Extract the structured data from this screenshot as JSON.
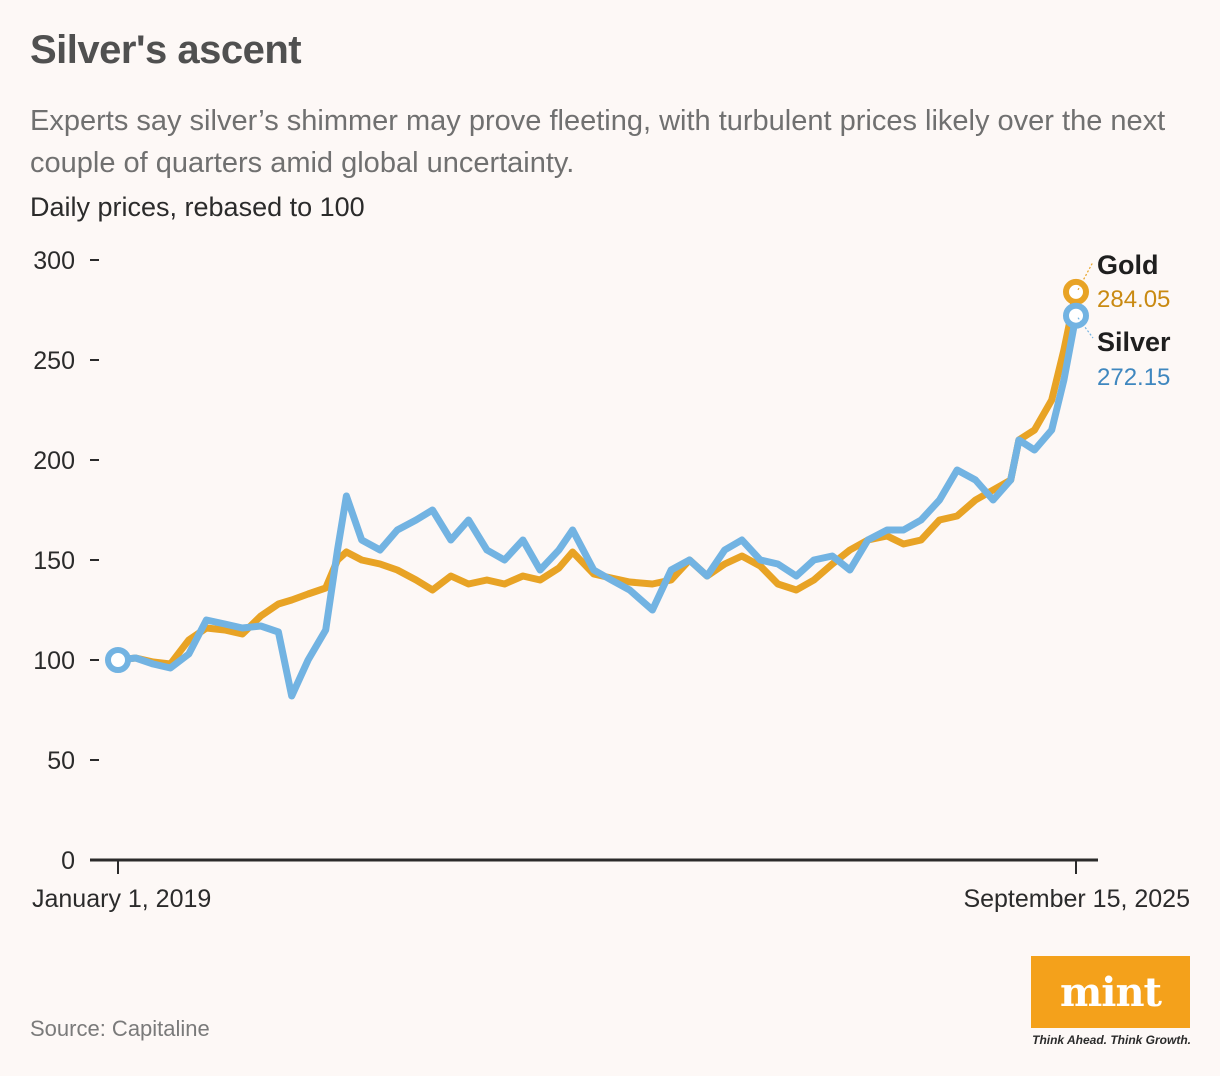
{
  "header": {
    "title": "Silver's ascent",
    "subtitle": "Experts say silver’s shimmer may prove fleeting, with turbulent prices likely over the next couple of quarters amid global uncertainty.",
    "unit_note": "Daily prices, rebased to 100"
  },
  "footer": {
    "source": "Source: Capitaline",
    "logo_text": "mint",
    "tagline": "Think Ahead. Think Growth."
  },
  "colors": {
    "gold": "#e8a325",
    "gold_text": "#c98a12",
    "silver": "#72b3e2",
    "silver_text": "#3f87bf",
    "axis": "#2b2b2b",
    "background": "#fdf8f6",
    "logo": "#f4a11b"
  },
  "chart_data": {
    "type": "line",
    "title": "Silver's ascent",
    "ylabel": "Daily prices, rebased to 100",
    "ylim": [
      0,
      300
    ],
    "yticks": [
      "0",
      "50",
      "100",
      "150",
      "200",
      "250",
      "300"
    ],
    "xlim": [
      "2019-01-01",
      "2025-09-15"
    ],
    "xtick_labels": [
      "January 1, 2019",
      "September 15, 2025"
    ],
    "grid": false,
    "legend": "end-of-line labels",
    "x": [
      "2019-01-01",
      "2019-02-15",
      "2019-04-01",
      "2019-05-15",
      "2019-07-01",
      "2019-08-15",
      "2019-10-01",
      "2019-11-15",
      "2020-01-01",
      "2020-02-15",
      "2020-03-20",
      "2020-05-01",
      "2020-06-15",
      "2020-07-15",
      "2020-08-07",
      "2020-09-15",
      "2020-11-01",
      "2020-12-15",
      "2021-02-01",
      "2021-03-15",
      "2021-05-01",
      "2021-06-15",
      "2021-08-01",
      "2021-09-15",
      "2021-11-01",
      "2021-12-15",
      "2022-02-01",
      "2022-03-08",
      "2022-05-01",
      "2022-06-15",
      "2022-08-01",
      "2022-09-28",
      "2022-11-15",
      "2023-01-01",
      "2023-02-15",
      "2023-04-01",
      "2023-05-15",
      "2023-07-01",
      "2023-08-15",
      "2023-10-01",
      "2023-11-15",
      "2024-01-01",
      "2024-02-15",
      "2024-04-01",
      "2024-05-20",
      "2024-07-01",
      "2024-08-15",
      "2024-10-01",
      "2024-11-15",
      "2025-01-01",
      "2025-02-15",
      "2025-04-01",
      "2025-04-22",
      "2025-06-01",
      "2025-07-15",
      "2025-08-15",
      "2025-09-15"
    ],
    "series": [
      {
        "name": "Gold",
        "end_value": "284.05",
        "values": [
          100,
          101,
          99,
          98,
          110,
          116,
          115,
          113,
          122,
          128,
          130,
          133,
          136,
          150,
          154,
          150,
          148,
          145,
          140,
          135,
          142,
          138,
          140,
          138,
          142,
          140,
          146,
          154,
          143,
          141,
          139,
          138,
          140,
          150,
          142,
          148,
          152,
          147,
          138,
          135,
          140,
          148,
          155,
          160,
          162,
          158,
          160,
          170,
          172,
          180,
          185,
          190,
          210,
          215,
          230,
          255,
          284.05
        ]
      },
      {
        "name": "Silver",
        "end_value": "272.15",
        "values": [
          100,
          101,
          98,
          96,
          103,
          120,
          118,
          116,
          117,
          114,
          82,
          100,
          115,
          155,
          182,
          160,
          155,
          165,
          170,
          175,
          160,
          170,
          155,
          150,
          160,
          145,
          155,
          165,
          145,
          140,
          135,
          125,
          145,
          150,
          142,
          155,
          160,
          150,
          148,
          142,
          150,
          152,
          145,
          160,
          165,
          165,
          170,
          180,
          195,
          190,
          180,
          190,
          210,
          205,
          215,
          240,
          272.15
        ]
      }
    ]
  }
}
